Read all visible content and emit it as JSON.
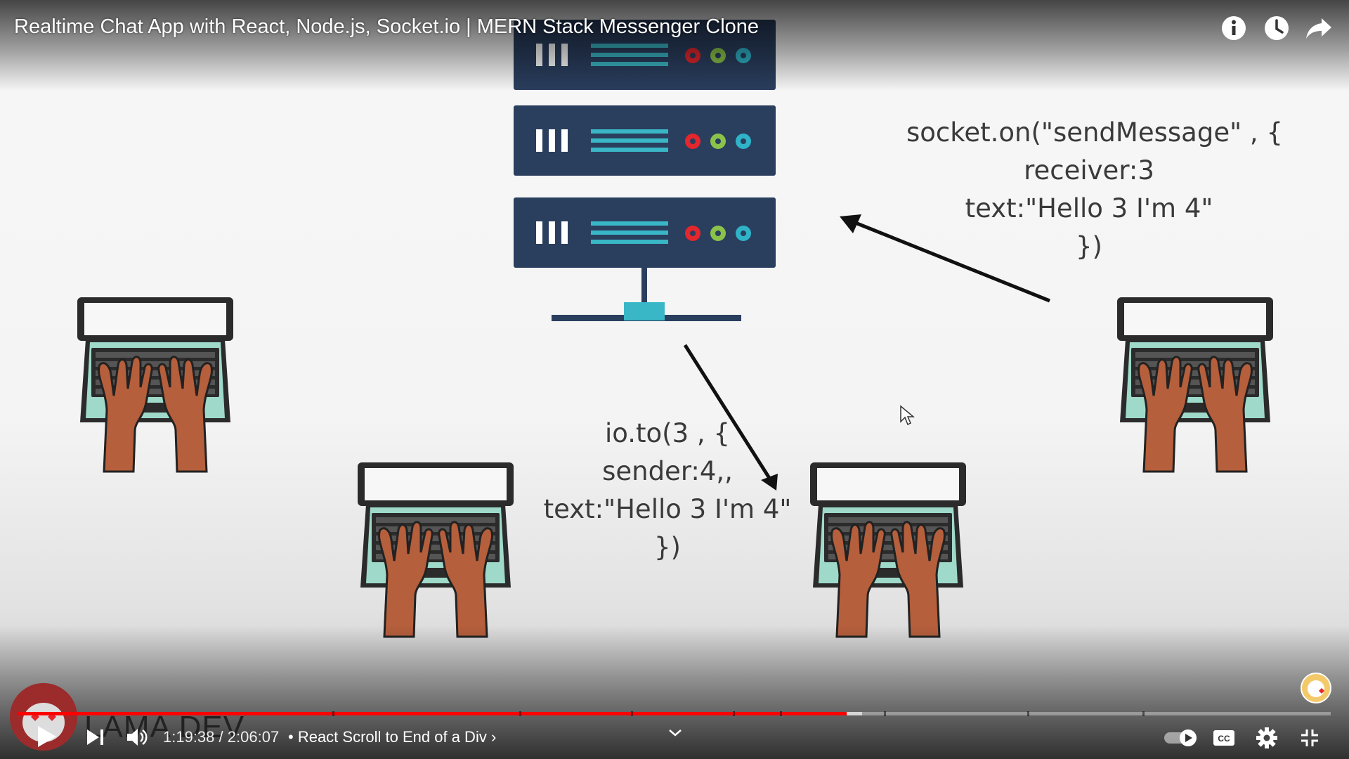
{
  "video": {
    "title": "Realtime Chat App with React, Node.js, Socket.io | MERN Stack Messenger Clone",
    "top_icons": [
      "info-icon",
      "watch-later-icon",
      "share-icon"
    ]
  },
  "slide": {
    "emit_code_lines": [
      "socket.on(\"sendMessage\" , {",
      "receiver:3",
      "text:\"Hello 3 I'm 4\"",
      "})"
    ],
    "server_code_lines": [
      "io.to(3 , {",
      "sender:4,,",
      "text:\"Hello 3 I'm 4\"",
      "})"
    ],
    "colors": {
      "server_body": "#2a3e5e",
      "server_accent": "#3ab7c6",
      "led_red": "#e4262d",
      "led_green": "#8bc34a",
      "led_cyan": "#2fb3c8",
      "laptop_body": "#9fd9c9",
      "skin": "#b55f3c"
    }
  },
  "watermark": {
    "text": "LAMA DEV"
  },
  "controls": {
    "time_current": "1:19:38",
    "time_separator": "/",
    "time_total": "2:06:07",
    "chapter_bullet": "•",
    "chapter_title": "React Scroll to End of a Div",
    "chapter_arrow": "›",
    "progress_fraction": 0.631,
    "buffered_fraction": 0.643,
    "progress_color": "#ff0000",
    "icons": [
      "play-icon",
      "next-icon",
      "volume-icon",
      "chevron-down-icon",
      "autoplay-toggle",
      "captions-icon",
      "settings-icon",
      "exit-fullscreen-icon"
    ]
  }
}
